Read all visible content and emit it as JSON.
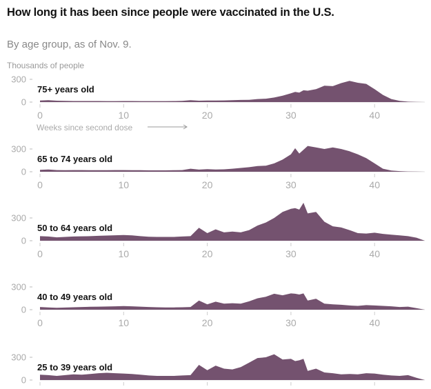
{
  "title": "How long it has been since people were vaccinated in the U.S.",
  "subtitle": "By age group, as of Nov. 9.",
  "fill_color": "#74526f",
  "chart_data": [
    {
      "type": "area",
      "title": "75+ years old",
      "ylabel": "Thousands of people",
      "xlabel": "Weeks since second dose",
      "x_ticks": [
        0,
        10,
        20,
        30,
        40
      ],
      "y_ticks": [
        0,
        300
      ],
      "xlim": [
        0,
        46
      ],
      "x": [
        0,
        1,
        2,
        3,
        4,
        5,
        6,
        7,
        8,
        9,
        10,
        11,
        12,
        13,
        14,
        15,
        16,
        17,
        18,
        19,
        20,
        21,
        22,
        23,
        24,
        25,
        26,
        27,
        28,
        29,
        30,
        30.5,
        31,
        31.5,
        32,
        33,
        34,
        35,
        36,
        37,
        38,
        39,
        40,
        41,
        42,
        43,
        44,
        45,
        46
      ],
      "values": [
        20,
        25,
        18,
        15,
        14,
        14,
        14,
        14,
        13,
        13,
        14,
        14,
        13,
        13,
        13,
        13,
        14,
        15,
        25,
        18,
        20,
        20,
        22,
        25,
        28,
        30,
        40,
        45,
        60,
        85,
        115,
        135,
        125,
        155,
        150,
        170,
        215,
        210,
        250,
        280,
        255,
        240,
        170,
        95,
        40,
        15,
        5,
        2,
        0
      ]
    },
    {
      "type": "area",
      "title": "65 to 74 years old",
      "ylabel": "Thousands of people",
      "x_ticks": [
        0,
        10,
        20,
        30,
        40
      ],
      "y_ticks": [
        0,
        300
      ],
      "xlim": [
        0,
        46
      ],
      "x": [
        0,
        1,
        2,
        3,
        4,
        5,
        6,
        7,
        8,
        9,
        10,
        11,
        12,
        13,
        14,
        15,
        16,
        17,
        18,
        19,
        20,
        21,
        22,
        23,
        24,
        25,
        26,
        27,
        28,
        29,
        30,
        30.5,
        31,
        31.5,
        32,
        33,
        34,
        35,
        36,
        37,
        38,
        39,
        40,
        41,
        42,
        43,
        44,
        45,
        46
      ],
      "values": [
        25,
        30,
        22,
        20,
        22,
        22,
        20,
        20,
        21,
        22,
        22,
        20,
        20,
        18,
        18,
        18,
        20,
        22,
        40,
        28,
        35,
        30,
        32,
        40,
        50,
        60,
        75,
        80,
        110,
        160,
        230,
        310,
        240,
        290,
        340,
        320,
        300,
        320,
        300,
        270,
        230,
        180,
        110,
        40,
        15,
        8,
        4,
        2,
        0
      ]
    },
    {
      "type": "area",
      "title": "50 to 64 years old",
      "ylabel": "Thousands of people",
      "x_ticks": [
        0,
        10,
        20,
        30,
        40
      ],
      "y_ticks": [
        0,
        300
      ],
      "xlim": [
        0,
        46
      ],
      "x": [
        0,
        1,
        2,
        3,
        4,
        5,
        6,
        7,
        8,
        9,
        10,
        11,
        12,
        13,
        14,
        15,
        16,
        17,
        18,
        19,
        20,
        21,
        22,
        23,
        24,
        25,
        26,
        27,
        28,
        29,
        30,
        30.5,
        31,
        31.5,
        32,
        33,
        34,
        35,
        36,
        37,
        38,
        39,
        40,
        41,
        42,
        43,
        44,
        45,
        46
      ],
      "values": [
        60,
        55,
        45,
        50,
        55,
        58,
        60,
        65,
        68,
        72,
        75,
        70,
        60,
        52,
        50,
        50,
        50,
        55,
        60,
        170,
        100,
        150,
        110,
        120,
        110,
        140,
        200,
        240,
        300,
        380,
        420,
        430,
        410,
        500,
        360,
        380,
        250,
        190,
        175,
        140,
        100,
        95,
        105,
        90,
        80,
        70,
        60,
        40,
        0
      ]
    },
    {
      "type": "area",
      "title": "40 to 49 years old",
      "ylabel": "Thousands of people",
      "x_ticks": [
        0,
        10,
        20,
        30,
        40
      ],
      "y_ticks": [
        0,
        300
      ],
      "xlim": [
        0,
        46
      ],
      "x": [
        0,
        1,
        2,
        3,
        4,
        5,
        6,
        7,
        8,
        9,
        10,
        11,
        12,
        13,
        14,
        15,
        16,
        17,
        18,
        19,
        20,
        21,
        22,
        23,
        24,
        25,
        26,
        27,
        28,
        29,
        30,
        30.5,
        31,
        31.5,
        32,
        33,
        34,
        35,
        36,
        37,
        38,
        39,
        40,
        41,
        42,
        43,
        44,
        45,
        46
      ],
      "values": [
        35,
        30,
        25,
        28,
        32,
        35,
        38,
        40,
        42,
        45,
        48,
        45,
        40,
        35,
        32,
        30,
        30,
        32,
        35,
        120,
        70,
        105,
        80,
        85,
        80,
        110,
        150,
        170,
        210,
        190,
        215,
        210,
        200,
        215,
        120,
        145,
        80,
        70,
        65,
        55,
        50,
        60,
        55,
        50,
        45,
        35,
        40,
        20,
        0
      ]
    },
    {
      "type": "area",
      "title": "25 to 39 years old",
      "ylabel": "Thousands of people",
      "x_ticks": [
        0,
        10,
        20,
        30,
        40
      ],
      "y_ticks": [
        0,
        300
      ],
      "xlim": [
        0,
        46
      ],
      "x": [
        0,
        1,
        2,
        3,
        4,
        5,
        6,
        7,
        8,
        9,
        10,
        11,
        12,
        13,
        14,
        15,
        16,
        17,
        18,
        19,
        20,
        21,
        22,
        23,
        24,
        25,
        26,
        27,
        28,
        29,
        30,
        30.5,
        31,
        31.5,
        32,
        33,
        34,
        35,
        36,
        37,
        38,
        39,
        40,
        41,
        42,
        43,
        44,
        45,
        46
      ],
      "values": [
        70,
        65,
        55,
        65,
        75,
        70,
        80,
        90,
        95,
        90,
        85,
        80,
        70,
        60,
        55,
        55,
        55,
        60,
        65,
        200,
        130,
        190,
        150,
        140,
        170,
        230,
        290,
        300,
        340,
        270,
        280,
        250,
        260,
        280,
        120,
        150,
        100,
        90,
        75,
        80,
        75,
        90,
        85,
        70,
        60,
        55,
        65,
        30,
        0
      ]
    }
  ]
}
